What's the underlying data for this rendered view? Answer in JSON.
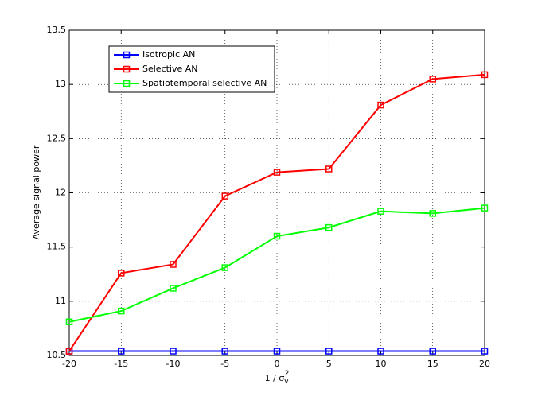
{
  "chart_data": {
    "type": "line",
    "x_label": {
      "text": "1 / σ",
      "sub": "v",
      "sup": "2"
    },
    "y_label": "Average signal power",
    "x": [
      -20,
      -15,
      -10,
      -5,
      0,
      5,
      10,
      15,
      20
    ],
    "series": [
      {
        "name": "Isotropic AN",
        "color": "#0000ff",
        "values": [
          10.54,
          10.54,
          10.54,
          10.54,
          10.54,
          10.54,
          10.54,
          10.54,
          10.54
        ]
      },
      {
        "name": "Selective AN",
        "color": "#ff0000",
        "values": [
          10.54,
          11.26,
          11.34,
          11.97,
          12.19,
          12.22,
          12.81,
          13.05,
          13.09
        ]
      },
      {
        "name": "Spatiotemporal selective AN",
        "color": "#00ff00",
        "values": [
          10.81,
          10.91,
          11.12,
          11.31,
          11.6,
          11.68,
          11.83,
          11.81,
          11.86
        ]
      }
    ],
    "xlim": [
      -20,
      20
    ],
    "xticks": [
      -20,
      -15,
      -10,
      -5,
      0,
      5,
      10,
      15,
      20
    ],
    "ylim": [
      10.5,
      13.5
    ],
    "yticks": [
      10.5,
      11,
      11.5,
      12,
      12.5,
      13,
      13.5
    ],
    "grid": true,
    "legend": "upper left"
  }
}
